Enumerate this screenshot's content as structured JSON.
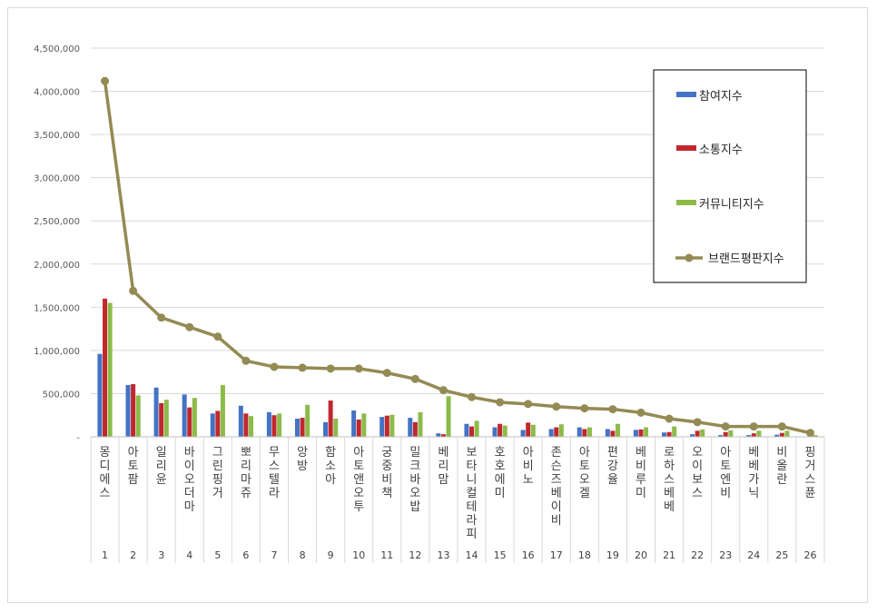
{
  "chart_data": {
    "type": "bar",
    "title": "",
    "xlabel": "",
    "ylabel": "",
    "ylim": [
      0,
      4500000
    ],
    "yticks": [
      0,
      500000,
      1000000,
      1500000,
      2000000,
      2500000,
      3000000,
      3500000,
      4000000,
      4500000
    ],
    "ytick_labels": [
      "-",
      "500,000",
      "1,000,000",
      "1,500,000",
      "2,000,000",
      "2,500,000",
      "3,000,000",
      "3,500,000",
      "4,000,000",
      "4,500,000"
    ],
    "grid": true,
    "legend_position": "top-right",
    "numbers": [
      "1",
      "2",
      "3",
      "4",
      "5",
      "6",
      "7",
      "8",
      "9",
      "10",
      "11",
      "12",
      "13",
      "14",
      "15",
      "16",
      "17",
      "18",
      "19",
      "20",
      "21",
      "22",
      "23",
      "24",
      "25",
      "26"
    ],
    "categories": [
      "몽디에스",
      "아토팜",
      "일리윤",
      "바이오더마",
      "그린핑거",
      "뽀리마쥬",
      "무스텔라",
      "앙방",
      "함소아",
      "아토앤오투",
      "궁중비책",
      "밀크바오밥",
      "베리맘",
      "보타니컬테라피",
      "호호에미",
      "아비노",
      "존슨즈베이비",
      "아토오겔",
      "편강율",
      "베비루미",
      "로하스베베",
      "오이보스",
      "아토엔비",
      "베베가닉",
      "비올란",
      "핑거스퓬"
    ],
    "series": [
      {
        "name": "참여지수",
        "type": "bar",
        "color": "#4472c4",
        "values": [
          960000,
          600000,
          570000,
          490000,
          270000,
          360000,
          285000,
          210000,
          170000,
          305000,
          230000,
          220000,
          40000,
          150000,
          110000,
          80000,
          90000,
          110000,
          90000,
          80000,
          50000,
          30000,
          20000,
          20000,
          25000,
          5000
        ]
      },
      {
        "name": "소통지수",
        "type": "bar",
        "color": "#c0282e",
        "values": [
          1600000,
          610000,
          390000,
          340000,
          300000,
          270000,
          250000,
          220000,
          420000,
          200000,
          245000,
          170000,
          30000,
          120000,
          150000,
          165000,
          110000,
          90000,
          70000,
          85000,
          55000,
          70000,
          55000,
          40000,
          45000,
          10000
        ]
      },
      {
        "name": "커뮤니티지수",
        "type": "bar",
        "color": "#8cbb4a",
        "values": [
          1550000,
          480000,
          430000,
          450000,
          600000,
          240000,
          270000,
          370000,
          210000,
          270000,
          255000,
          285000,
          470000,
          185000,
          130000,
          140000,
          145000,
          110000,
          150000,
          110000,
          120000,
          85000,
          75000,
          70000,
          70000,
          20000
        ]
      },
      {
        "name": "브랜드평판지수",
        "type": "line",
        "color": "#948a54",
        "values": [
          4120000,
          1690000,
          1380000,
          1270000,
          1160000,
          880000,
          810000,
          800000,
          790000,
          790000,
          740000,
          670000,
          540000,
          460000,
          400000,
          380000,
          350000,
          330000,
          320000,
          280000,
          210000,
          170000,
          120000,
          120000,
          120000,
          45000
        ]
      }
    ]
  }
}
